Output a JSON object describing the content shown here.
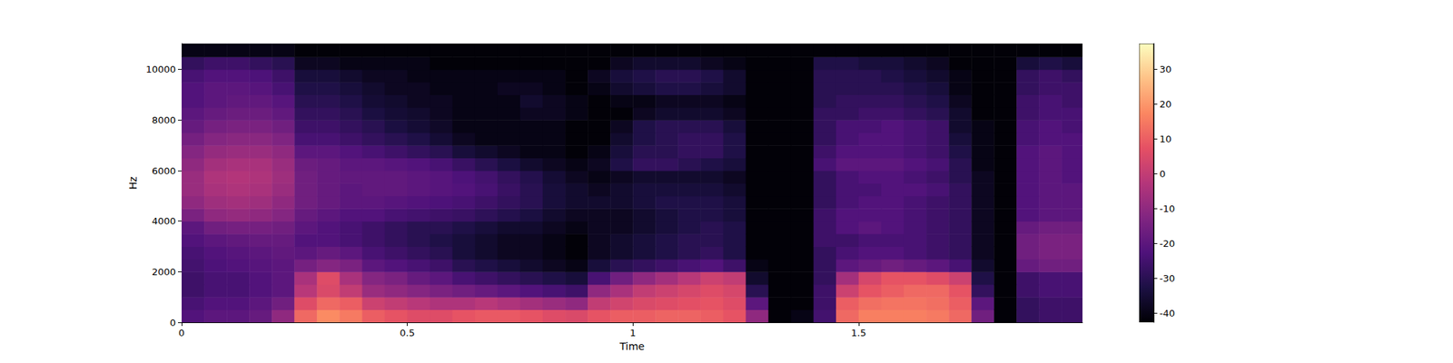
{
  "chart_data": {
    "type": "spectrogram",
    "xlabel": "Time",
    "ylabel": "Hz",
    "xlim": [
      0,
      1.996
    ],
    "xticks": [
      0,
      0.5,
      1,
      1.5
    ],
    "ylim": [
      0,
      11025
    ],
    "yticks": [
      0,
      2000,
      4000,
      6000,
      8000,
      10000
    ],
    "time_edges": [
      0,
      0.05,
      0.1,
      0.15,
      0.2,
      0.25,
      0.3,
      0.35,
      0.4,
      0.45,
      0.5,
      0.55,
      0.6,
      0.65,
      0.7,
      0.75,
      0.8,
      0.85,
      0.9,
      0.95,
      1.0,
      1.05,
      1.1,
      1.15,
      1.2,
      1.25,
      1.3,
      1.35,
      1.4,
      1.45,
      1.5,
      1.55,
      1.6,
      1.65,
      1.7,
      1.75,
      1.8,
      1.85,
      1.9,
      1.95,
      2.0
    ],
    "freq_edges": [
      0,
      500,
      1000,
      1500,
      2000,
      2500,
      3000,
      3500,
      4000,
      4500,
      5000,
      5500,
      6000,
      6500,
      7000,
      7500,
      8000,
      8500,
      9000,
      9500,
      10000,
      10500,
      11025
    ],
    "db": [
      [
        -22,
        -24,
        -26,
        -26,
        -25,
        -24,
        -22,
        -20,
        -14,
        -10,
        -8,
        -8,
        -10,
        -12,
        -15,
        -18,
        -20,
        -22,
        -22,
        -24,
        -28,
        -40
      ],
      [
        -20,
        -22,
        -24,
        -24,
        -23,
        -22,
        -20,
        -16,
        -10,
        -7,
        -5,
        -4,
        -6,
        -9,
        -12,
        -15,
        -18,
        -20,
        -20,
        -22,
        -26,
        -40
      ],
      [
        -20,
        -22,
        -24,
        -24,
        -22,
        -21,
        -19,
        -15,
        -9,
        -6,
        -4,
        -3,
        -5,
        -8,
        -11,
        -14,
        -17,
        -19,
        -20,
        -22,
        -26,
        -40
      ],
      [
        -18,
        -20,
        -22,
        -22,
        -21,
        -20,
        -18,
        -15,
        -10,
        -7,
        -5,
        -4,
        -5,
        -8,
        -11,
        -14,
        -17,
        -19,
        -21,
        -23,
        -28,
        -40
      ],
      [
        -10,
        -16,
        -20,
        -20,
        -20,
        -19,
        -18,
        -16,
        -12,
        -10,
        -8,
        -7,
        -8,
        -10,
        -13,
        -16,
        -19,
        -21,
        -24,
        -26,
        -30,
        -40
      ],
      [
        12,
        6,
        -2,
        -5,
        -15,
        -20,
        -22,
        -20,
        -18,
        -16,
        -16,
        -16,
        -17,
        -20,
        -24,
        -26,
        -28,
        -30,
        -32,
        -34,
        -38,
        -42
      ],
      [
        18,
        12,
        5,
        6,
        -12,
        -18,
        -22,
        -22,
        -20,
        -18,
        -18,
        -18,
        -18,
        -20,
        -24,
        -26,
        -28,
        -30,
        -32,
        -34,
        -38,
        -42
      ],
      [
        15,
        10,
        0,
        -5,
        -14,
        -20,
        -24,
        -24,
        -22,
        -20,
        -20,
        -19,
        -20,
        -22,
        -26,
        -28,
        -30,
        -32,
        -34,
        -36,
        -40,
        -42
      ],
      [
        10,
        2,
        -8,
        -12,
        -20,
        -24,
        -26,
        -26,
        -22,
        -20,
        -19,
        -19,
        -20,
        -24,
        -28,
        -30,
        -33,
        -35,
        -36,
        -38,
        -40,
        -42
      ],
      [
        8,
        0,
        -10,
        -14,
        -22,
        -26,
        -28,
        -28,
        -24,
        -21,
        -19,
        -19,
        -21,
        -26,
        -30,
        -33,
        -35,
        -36,
        -38,
        -38,
        -40,
        -42
      ],
      [
        6,
        -2,
        -12,
        -18,
        -24,
        -28,
        -30,
        -30,
        -25,
        -22,
        -20,
        -20,
        -22,
        -28,
        -32,
        -35,
        -36,
        -38,
        -38,
        -40,
        -40,
        -42
      ],
      [
        6,
        -4,
        -14,
        -20,
        -26,
        -30,
        -32,
        -30,
        -26,
        -23,
        -21,
        -21,
        -24,
        -30,
        -35,
        -37,
        -38,
        -38,
        -40,
        -40,
        -42,
        -42
      ],
      [
        8,
        -4,
        -16,
        -24,
        -30,
        -34,
        -34,
        -32,
        -27,
        -24,
        -22,
        -23,
        -27,
        -34,
        -38,
        -40,
        -40,
        -40,
        -40,
        -40,
        -42,
        -42
      ],
      [
        9,
        -2,
        -18,
        -26,
        -32,
        -36,
        -36,
        -34,
        -29,
        -26,
        -24,
        -25,
        -30,
        -36,
        -40,
        -40,
        -40,
        -40,
        -40,
        -40,
        -42,
        -42
      ],
      [
        9,
        -4,
        -20,
        -28,
        -34,
        -38,
        -38,
        -36,
        -31,
        -28,
        -27,
        -28,
        -33,
        -38,
        -40,
        -40,
        -40,
        -40,
        -38,
        -40,
        -42,
        -42
      ],
      [
        8,
        -6,
        -22,
        -30,
        -36,
        -38,
        -38,
        -36,
        -33,
        -30,
        -30,
        -31,
        -36,
        -40,
        -40,
        -40,
        -38,
        -36,
        -38,
        -40,
        -42,
        -42
      ],
      [
        6,
        -8,
        -24,
        -32,
        -38,
        -40,
        -40,
        -38,
        -36,
        -34,
        -34,
        -35,
        -38,
        -40,
        -40,
        -40,
        -38,
        -38,
        -40,
        -40,
        -42,
        -42
      ],
      [
        5,
        -10,
        -26,
        -34,
        -40,
        -42,
        -42,
        -40,
        -38,
        -36,
        -36,
        -38,
        -40,
        -42,
        -42,
        -42,
        -40,
        -40,
        -42,
        -42,
        -42,
        -42
      ],
      [
        8,
        0,
        -10,
        -24,
        -34,
        -38,
        -38,
        -38,
        -38,
        -36,
        -38,
        -40,
        -38,
        -40,
        -42,
        -42,
        -42,
        -42,
        -40,
        -38,
        -42,
        -42
      ],
      [
        10,
        3,
        -5,
        -16,
        -30,
        -36,
        -36,
        -38,
        -38,
        -36,
        -36,
        -38,
        -32,
        -34,
        -36,
        -38,
        -42,
        -40,
        -36,
        -34,
        -38,
        -42
      ],
      [
        10,
        5,
        0,
        -10,
        -28,
        -34,
        -34,
        -36,
        -36,
        -34,
        -34,
        -36,
        -28,
        -30,
        -32,
        -32,
        -38,
        -40,
        -34,
        -32,
        -36,
        -42
      ],
      [
        11,
        6,
        2,
        -6,
        -26,
        -32,
        -32,
        -34,
        -34,
        -32,
        -34,
        -36,
        -28,
        -30,
        -30,
        -30,
        -36,
        -38,
        -32,
        -30,
        -36,
        -42
      ],
      [
        11,
        7,
        4,
        -2,
        -24,
        -30,
        -30,
        -32,
        -32,
        -32,
        -34,
        -36,
        -30,
        -28,
        -28,
        -30,
        -36,
        -38,
        -32,
        -30,
        -36,
        -42
      ],
      [
        10,
        8,
        6,
        2,
        -22,
        -28,
        -30,
        -30,
        -32,
        -32,
        -34,
        -36,
        -32,
        -28,
        -28,
        -30,
        -36,
        -38,
        -34,
        -32,
        -38,
        -42
      ],
      [
        8,
        6,
        4,
        0,
        -26,
        -32,
        -32,
        -32,
        -34,
        -34,
        -36,
        -38,
        -34,
        -32,
        -32,
        -34,
        -38,
        -40,
        -36,
        -36,
        -40,
        -42
      ],
      [
        -10,
        -20,
        -30,
        -36,
        -40,
        -42,
        -42,
        -42,
        -42,
        -42,
        -42,
        -42,
        -42,
        -42,
        -42,
        -42,
        -42,
        -42,
        -42,
        -42,
        -42,
        -42
      ],
      [
        -42,
        -42,
        -42,
        -42,
        -42,
        -42,
        -42,
        -42,
        -42,
        -42,
        -42,
        -42,
        -42,
        -42,
        -42,
        -42,
        -42,
        -42,
        -42,
        -42,
        -42,
        -42
      ],
      [
        -40,
        -42,
        -42,
        -42,
        -42,
        -42,
        -42,
        -42,
        -42,
        -42,
        -42,
        -42,
        -42,
        -42,
        -42,
        -42,
        -42,
        -42,
        -42,
        -42,
        -42,
        -42
      ],
      [
        -25,
        -26,
        -26,
        -28,
        -28,
        -28,
        -26,
        -26,
        -26,
        -28,
        -28,
        -28,
        -24,
        -26,
        -28,
        -28,
        -28,
        -30,
        -30,
        -30,
        -32,
        -42
      ],
      [
        12,
        10,
        2,
        -6,
        -20,
        -24,
        -26,
        -22,
        -22,
        -24,
        -24,
        -24,
        -20,
        -22,
        -24,
        -24,
        -28,
        -28,
        -30,
        -30,
        -32,
        -42
      ],
      [
        16,
        13,
        8,
        4,
        -18,
        -22,
        -24,
        -20,
        -22,
        -22,
        -24,
        -22,
        -20,
        -22,
        -22,
        -24,
        -26,
        -28,
        -30,
        -30,
        -34,
        -42
      ],
      [
        16,
        14,
        10,
        8,
        -16,
        -22,
        -24,
        -22,
        -22,
        -22,
        -22,
        -22,
        -20,
        -22,
        -22,
        -22,
        -26,
        -28,
        -30,
        -32,
        -34,
        -42
      ],
      [
        16,
        14,
        12,
        8,
        -18,
        -24,
        -24,
        -24,
        -24,
        -24,
        -22,
        -24,
        -22,
        -24,
        -24,
        -24,
        -28,
        -30,
        -32,
        -34,
        -36,
        -42
      ],
      [
        15,
        13,
        12,
        6,
        -20,
        -26,
        -26,
        -26,
        -26,
        -26,
        -24,
        -26,
        -24,
        -26,
        -26,
        -26,
        -30,
        -32,
        -34,
        -36,
        -38,
        -42
      ],
      [
        12,
        10,
        8,
        2,
        -24,
        -28,
        -28,
        -28,
        -28,
        -28,
        -28,
        -30,
        -30,
        -32,
        -34,
        -36,
        -36,
        -38,
        -40,
        -40,
        -42,
        -42
      ],
      [
        -16,
        -20,
        -28,
        -32,
        -36,
        -38,
        -38,
        -38,
        -38,
        -38,
        -38,
        -38,
        -40,
        -40,
        -40,
        -40,
        -42,
        -42,
        -42,
        -42,
        -42,
        -42
      ],
      [
        -42,
        -42,
        -42,
        -42,
        -42,
        -42,
        -42,
        -42,
        -42,
        -42,
        -42,
        -42,
        -42,
        -42,
        -42,
        -42,
        -42,
        -42,
        -42,
        -42,
        -42,
        -42
      ],
      [
        -28,
        -28,
        -26,
        -26,
        -18,
        -16,
        -16,
        -18,
        -22,
        -22,
        -22,
        -22,
        -22,
        -22,
        -24,
        -24,
        -26,
        -26,
        -28,
        -28,
        -34,
        -42
      ],
      [
        -26,
        -26,
        -24,
        -24,
        -16,
        -14,
        -14,
        -16,
        -20,
        -20,
        -20,
        -20,
        -20,
        -20,
        -22,
        -22,
        -24,
        -24,
        -26,
        -26,
        -32,
        -42
      ],
      [
        -26,
        -26,
        -24,
        -24,
        -16,
        -14,
        -14,
        -16,
        -20,
        -20,
        -20,
        -22,
        -22,
        -22,
        -22,
        -24,
        -24,
        -26,
        -26,
        -28,
        -34,
        -42
      ]
    ],
    "colorbar": {
      "range": [
        -42.6,
        37.4
      ],
      "ticks": [
        -40,
        -30,
        -20,
        -10,
        0,
        10,
        20,
        30
      ]
    }
  }
}
